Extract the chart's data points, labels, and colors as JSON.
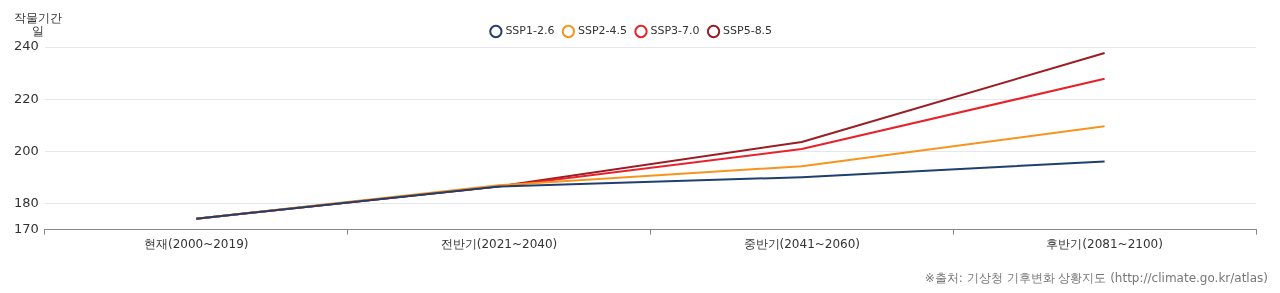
{
  "chart_data": {
    "type": "line",
    "ylabel": "작물기간\n일",
    "annotations": [
      "※출처: 기상청 기후변화 상황지도 (http://climate.go.kr/atlas)"
    ],
    "categories": [
      "현재(2000~2019)",
      "전반기(2021~2040)",
      "중반기(2041~2060)",
      "후반기(2081~2100)"
    ],
    "series": [
      {
        "name": "SSP1-2.6",
        "color": "#1f3f6e",
        "values": [
          174.2,
          186.5,
          190.1,
          196.1
        ]
      },
      {
        "name": "SSP2-4.5",
        "color": "#f7941d",
        "values": [
          174.2,
          187,
          194.3,
          209.6
        ]
      },
      {
        "name": "SSP3-7.0",
        "color": "#e8222a",
        "values": [
          174.2,
          186.5,
          200.9,
          227.8
        ]
      },
      {
        "name": "SSP5-8.5",
        "color": "#9b1c22",
        "values": [
          174.2,
          186.6,
          203.6,
          237.7
        ]
      }
    ],
    "ylim": [
      170,
      240
    ],
    "yticks": [
      170,
      180,
      200,
      220,
      240
    ],
    "grid": "y",
    "legend": "top",
    "marker": "none",
    "line_style": "solid"
  }
}
